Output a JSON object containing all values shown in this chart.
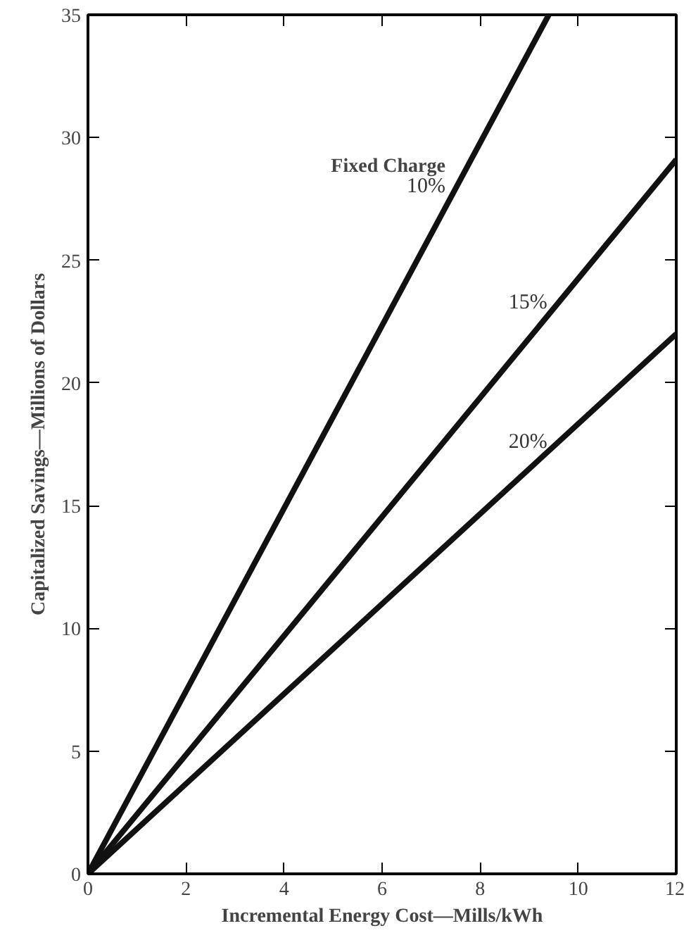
{
  "chart_data": {
    "type": "line",
    "xlabel": "Incremental Energy Cost—Mills/kWh",
    "ylabel": "Capitalized Savings—Millions of Dollars",
    "legend_title": "Fixed Charge",
    "xlim": [
      0,
      12
    ],
    "ylim": [
      0,
      35
    ],
    "xticks": [
      0,
      2,
      4,
      6,
      8,
      10,
      12
    ],
    "yticks": [
      0,
      5,
      10,
      15,
      20,
      25,
      30,
      35
    ],
    "grid": false,
    "line_style": "solid",
    "marker": "none",
    "series": [
      {
        "name": "10%",
        "color": "#111111",
        "x": [
          0,
          9.4
        ],
        "values": [
          0,
          35
        ]
      },
      {
        "name": "15%",
        "color": "#111111",
        "x": [
          0,
          12
        ],
        "values": [
          0,
          29.1
        ]
      },
      {
        "name": "20%",
        "color": "#111111",
        "x": [
          0,
          12
        ],
        "values": [
          0,
          22.0
        ]
      }
    ]
  }
}
